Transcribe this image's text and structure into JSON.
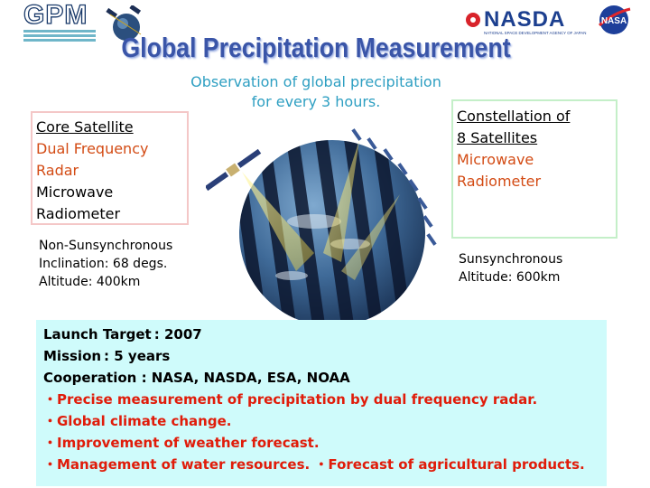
{
  "logos": {
    "gpm": "GPM",
    "nasda": "NASDA",
    "nasda_subtitle": "NATIONAL SPACE DEVELOPMENT AGENCY OF JAPAN",
    "nasa": "NASA"
  },
  "title": "Global Precipitation Measurement",
  "subtitle_lines": [
    "Observation of global precipitation",
    "for every 3 hours."
  ],
  "core": {
    "heading": "Core Satellite",
    "items_red": [
      "Dual Frequency",
      "Radar"
    ],
    "items_black": [
      "Microwave",
      "Radiometer"
    ],
    "orbit": [
      "Non-Sunsynchronous",
      "Inclination: 68 degs.",
      "Altitude: 400km"
    ]
  },
  "constellation": {
    "heading_lines": [
      "Constellation of",
      "8 Satellites"
    ],
    "items_red": [
      "Microwave",
      "Radiometer"
    ],
    "orbit": [
      "Sunsynchronous",
      "Altitude: 600km"
    ]
  },
  "summary": {
    "launch": "Launch Target : 2007",
    "mission": "Mission : 5 years",
    "cooperation": "Cooperation :  NASA, NASDA, ESA, NOAA",
    "bullets": [
      "・Precise measurement of precipitation by dual frequency radar.",
      "・Global climate change.",
      "・Improvement of weather forecast.",
      "・Management of water resources. ・Forecast of agricultural products."
    ]
  },
  "colors": {
    "title": "#3a55a8",
    "subtitle": "#2e9fc2",
    "accent_red": "#d34b14",
    "summary_bg": "#cffbfb",
    "core_border": "#f4c7c7",
    "constellation_border": "#c4efc8"
  }
}
